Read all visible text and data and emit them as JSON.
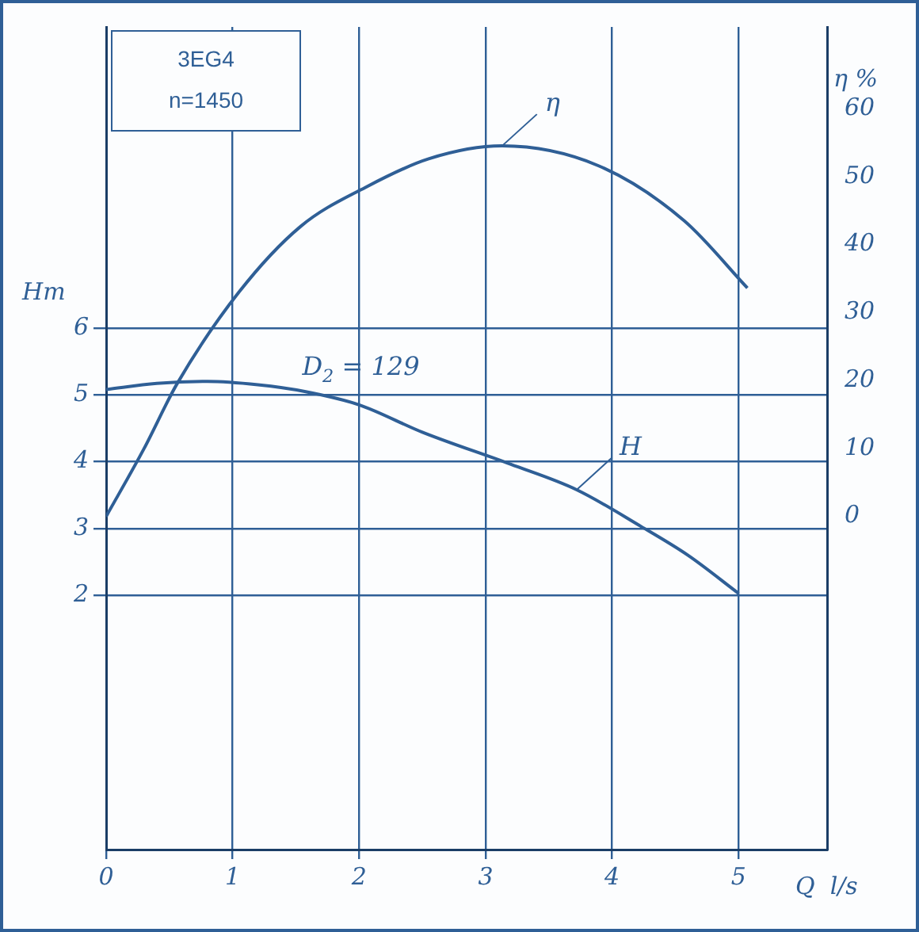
{
  "chart_data": {
    "type": "line",
    "title": "3EG4",
    "subtitle": "n=1450",
    "xlabel": "Q  l/s",
    "ylabel": "Hm",
    "y2label": "η %",
    "xlim": [
      0,
      5.7
    ],
    "xticks": [
      0,
      1,
      2,
      3,
      4,
      5
    ],
    "ylim": [
      -1.8,
      10.5
    ],
    "yticks": [
      2,
      3,
      4,
      5,
      6
    ],
    "y2lim": [
      -49,
      72
    ],
    "y2ticks": [
      0,
      10,
      20,
      30,
      40,
      50,
      60
    ],
    "grid": true,
    "legend": false,
    "marker": "none",
    "line_style": "solid",
    "annotations": [
      "D$_{2}$ = 129"
    ],
    "series": [
      {
        "name": "H",
        "color": "#2f5f96",
        "x": [
          0,
          0.4,
          0.8,
          1.2,
          1.57,
          2.0,
          2.5,
          3.2,
          3.72,
          4.23,
          4.6,
          5.0
        ],
        "values": [
          5.08,
          5.17,
          5.2,
          5.15,
          5.05,
          4.85,
          4.44,
          3.96,
          3.58,
          3.03,
          2.6,
          2.03
        ]
      },
      {
        "name": "η",
        "color": "#2f5f96",
        "axis": "y2",
        "x": [
          0,
          0.3,
          0.56,
          1.05,
          1.54,
          2.05,
          2.55,
          3.13,
          3.89,
          4.57,
          5.07
        ],
        "values": [
          0,
          10,
          19.5,
          33,
          42.7,
          48.4,
          52.6,
          54.5,
          51.6,
          43.5,
          33.6
        ]
      }
    ]
  }
}
